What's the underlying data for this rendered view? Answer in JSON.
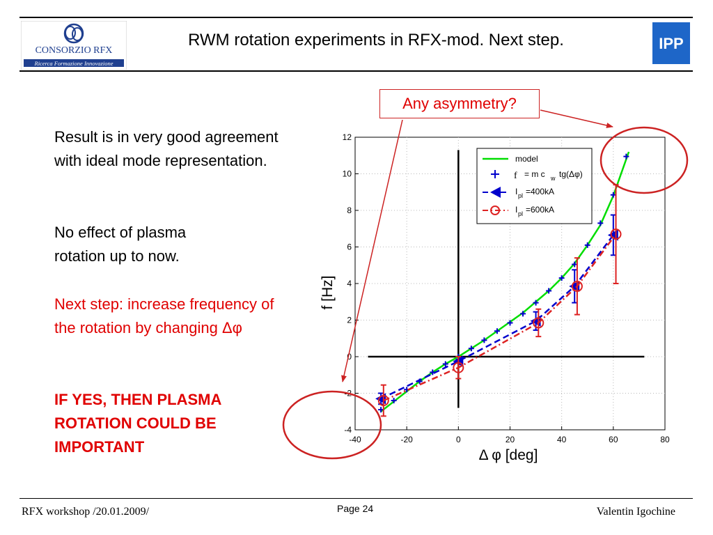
{
  "header": {
    "title": "RWM rotation experiments in RFX-mod. Next step.",
    "logo_left_name": "CONSORZIO RFX",
    "logo_left_tagline": "Ricerca Formazione Innovazione",
    "logo_right_text": "IPP"
  },
  "body": {
    "paragraph1": "Result is in very good agreement with ideal mode representation.",
    "paragraph2": "No effect of plasma rotation up to now.",
    "paragraph3": "Next step: increase frequency of the rotation by changing Δφ",
    "paragraph4": "IF YES, THEN PLASMA ROTATION COULD BE IMPORTANT"
  },
  "callout": {
    "text": "Any asymmetry?",
    "color": "#e00000"
  },
  "footer": {
    "left": "RFX workshop /20.01.2009/",
    "page": "Page 24",
    "right": "Valentin Igochine"
  },
  "chart_data": {
    "type": "line",
    "xlabel": "Δ φ [deg]",
    "ylabel": "f [Hz]",
    "xlim": [
      -40,
      80
    ],
    "ylim": [
      -4,
      12
    ],
    "xticks": [
      -40,
      -20,
      0,
      20,
      40,
      60,
      80
    ],
    "yticks": [
      -4,
      -2,
      0,
      2,
      4,
      6,
      8,
      10,
      12
    ],
    "grid": true,
    "legend_position": "top-right",
    "series": [
      {
        "name": "model",
        "style": "solid",
        "color": "#00dd00",
        "x": [
          -30,
          -25,
          -20,
          -15,
          -10,
          -5,
          0,
          5,
          10,
          15,
          20,
          25,
          30,
          35,
          40,
          45,
          50,
          55,
          60,
          63,
          66
        ],
        "y": [
          -3.0,
          -2.45,
          -1.9,
          -1.35,
          -0.85,
          -0.4,
          0,
          0.45,
          0.9,
          1.4,
          1.9,
          2.4,
          3.0,
          3.6,
          4.3,
          5.1,
          6.1,
          7.2,
          8.8,
          10.0,
          11.2
        ]
      },
      {
        "name": "f = m c_w tg(Δφ)",
        "style": "markers",
        "marker": "plus",
        "color": "#0000cc",
        "x": [
          -30,
          -25,
          -20,
          -15,
          -10,
          -5,
          0,
          5,
          10,
          15,
          20,
          25,
          30,
          35,
          40,
          45,
          50,
          55,
          60,
          65
        ],
        "y": [
          -2.9,
          -2.4,
          -1.8,
          -1.35,
          -0.85,
          -0.4,
          0,
          0.45,
          0.9,
          1.4,
          1.85,
          2.35,
          2.95,
          3.6,
          4.3,
          5.05,
          6.1,
          7.3,
          8.85,
          10.95
        ]
      },
      {
        "name": "I_pl=400kA",
        "style": "dashed",
        "marker": "triangle-left",
        "color": "#0000cc",
        "x": [
          -30,
          0,
          30,
          45,
          60
        ],
        "y": [
          -2.3,
          -0.25,
          1.95,
          3.85,
          6.65
        ],
        "err": [
          0.3,
          0.1,
          0.5,
          0.9,
          1.1
        ]
      },
      {
        "name": "I_pl=600kA",
        "style": "dash-dot",
        "marker": "circle-open",
        "color": "#dd2222",
        "x": [
          -29,
          0,
          31,
          46,
          61
        ],
        "y": [
          -2.4,
          -0.6,
          1.85,
          3.85,
          6.7
        ],
        "err": [
          0.85,
          0.6,
          0.75,
          1.55,
          2.7
        ]
      }
    ],
    "legend_entries": {
      "model": "model",
      "formula_f": "f",
      "formula_rest": "= m c",
      "formula_sub": "w",
      "formula_tail": "tg(Δφ)",
      "i_label": "I",
      "i_sub": "pl",
      "i400_rest": "=400kA",
      "i600_rest": "=600kA"
    }
  }
}
